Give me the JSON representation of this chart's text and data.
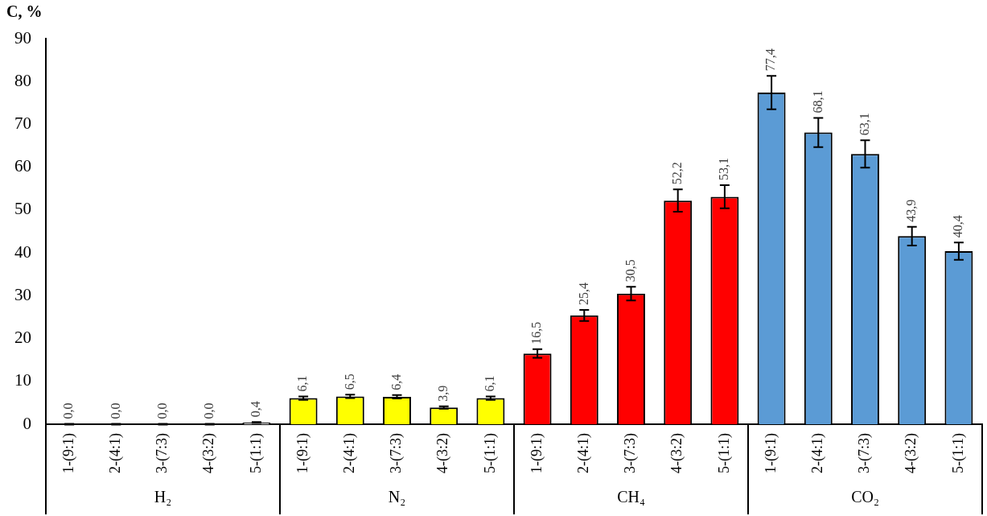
{
  "chart_data": {
    "type": "bar",
    "ylabel": "C, %",
    "categories": [
      "1-(9:1)",
      "2-(4:1)",
      "3-(7:3)",
      "4-(3:2)",
      "5-(1:1)",
      "1-(9:1)",
      "2-(4:1)",
      "3-(7:3)",
      "4-(3:2)",
      "5-(1:1)",
      "1-(9:1)",
      "2-(4:1)",
      "3-(7:3)",
      "4-(3:2)",
      "5-(1:1)",
      "1-(9:1)",
      "2-(4:1)",
      "3-(7:3)",
      "4-(3:2)",
      "5-(1:1)"
    ],
    "values": [
      0.0,
      0.0,
      0.0,
      0.0,
      0.4,
      6.1,
      6.5,
      6.4,
      3.9,
      6.1,
      16.5,
      25.4,
      30.5,
      52.2,
      53.1,
      77.4,
      68.1,
      63.1,
      43.9,
      40.4
    ],
    "value_labels": [
      "0,0",
      "0,0",
      "0,0",
      "0,0",
      "0,4",
      "6,1",
      "6,5",
      "6,4",
      "3,9",
      "6,1",
      "16,5",
      "25,4",
      "30,5",
      "52,2",
      "53,1",
      "77,4",
      "68,1",
      "63,1",
      "43,9",
      "40,4"
    ],
    "errors": [
      0.1,
      0.1,
      0.1,
      0.1,
      0.1,
      0.4,
      0.4,
      0.4,
      0.3,
      0.4,
      1,
      1.3,
      1.6,
      2.6,
      2.7,
      3.9,
      3.4,
      3.2,
      2.2,
      2
    ],
    "colors": [
      "#ffffff",
      "#ffffff",
      "#ffffff",
      "#ffffff",
      "#ffffff",
      "#ffff00",
      "#ffff00",
      "#ffff00",
      "#ffff00",
      "#ffff00",
      "#ff0000",
      "#ff0000",
      "#ff0000",
      "#ff0000",
      "#ff0000",
      "#5b9bd5",
      "#5b9bd5",
      "#5b9bd5",
      "#5b9bd5",
      "#5b9bd5"
    ],
    "annotations": [
      "H₂",
      "N₂",
      "CH₄",
      "CO₂"
    ],
    "ylim": [
      0,
      90
    ],
    "yticks": [
      0,
      10,
      20,
      30,
      40,
      50,
      60,
      70,
      80,
      90
    ],
    "grid": false,
    "legend": false
  }
}
